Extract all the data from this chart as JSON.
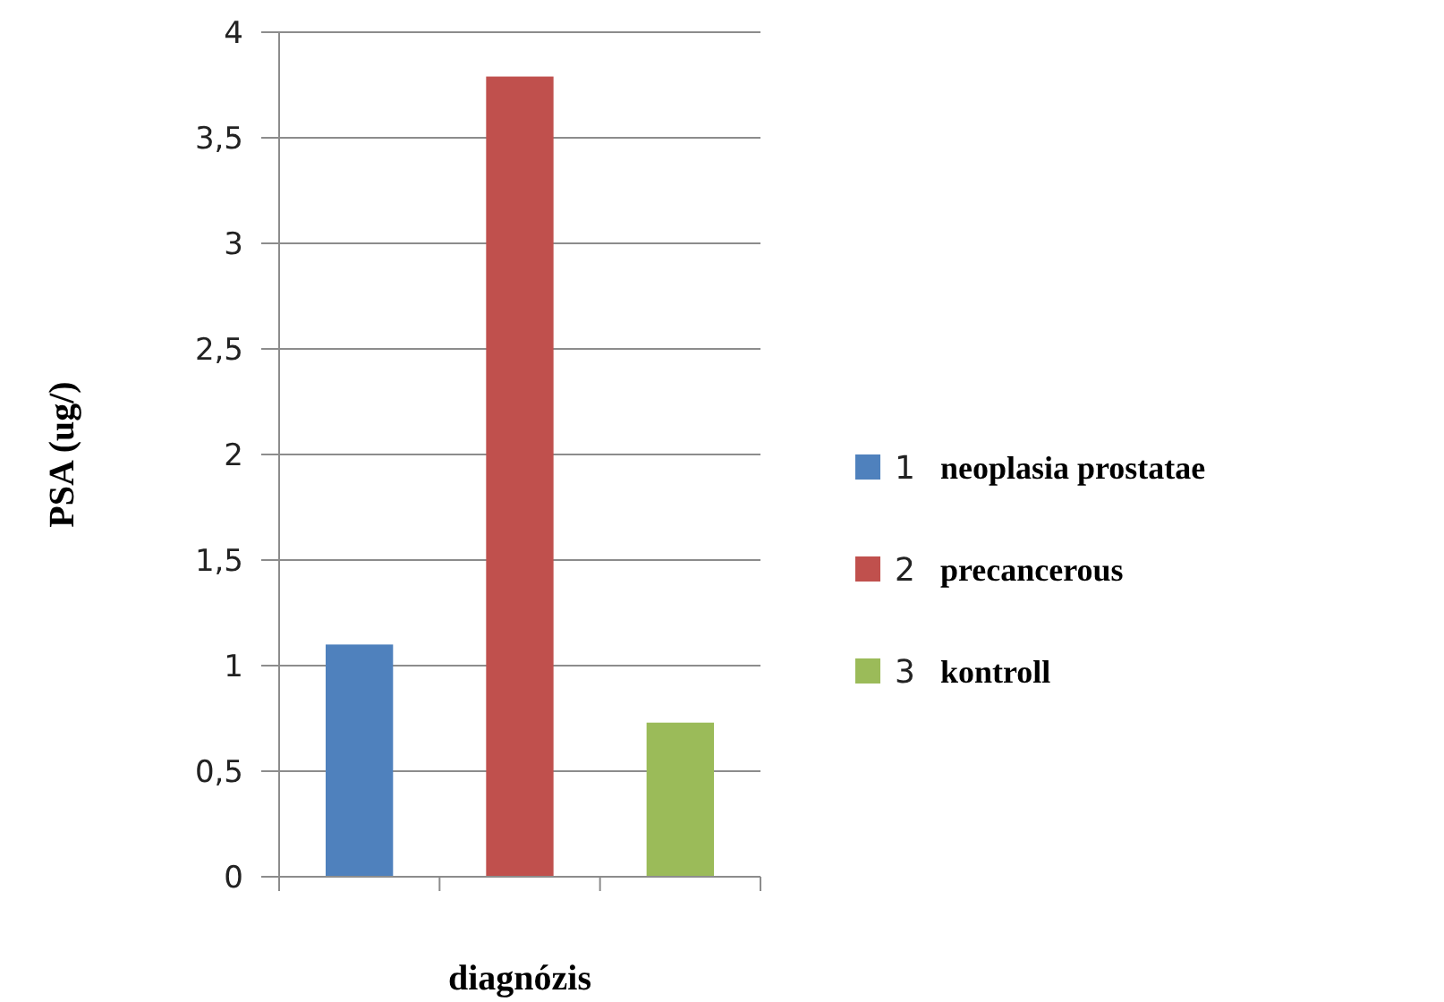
{
  "chart_data": {
    "type": "bar",
    "xlabel": "diagnózis",
    "ylabel": "PSA (ug/)",
    "categories": [
      null,
      null,
      null
    ],
    "series": [
      {
        "name": "1 neoplasia prostatae",
        "color": "#4f81bd",
        "values": [
          1.1,
          null,
          null
        ]
      },
      {
        "name": "2 precancerous",
        "color": "#c0504d",
        "values": [
          null,
          3.79,
          null
        ]
      },
      {
        "name": "3 kontroll",
        "color": "#9bbb59",
        "values": [
          null,
          null,
          0.73
        ]
      }
    ],
    "ylim": [
      0,
      4
    ],
    "yticks": [
      {
        "value": 0,
        "label": "0"
      },
      {
        "value": 0.5,
        "label": "0,5"
      },
      {
        "value": 1,
        "label": "1"
      },
      {
        "value": 1.5,
        "label": "1,5"
      },
      {
        "value": 2,
        "label": "2"
      },
      {
        "value": 2.5,
        "label": "2,5"
      },
      {
        "value": 3,
        "label": "3"
      },
      {
        "value": 3.5,
        "label": "3,5"
      },
      {
        "value": 4,
        "label": "4"
      }
    ],
    "grid": "y",
    "legend": "right"
  }
}
